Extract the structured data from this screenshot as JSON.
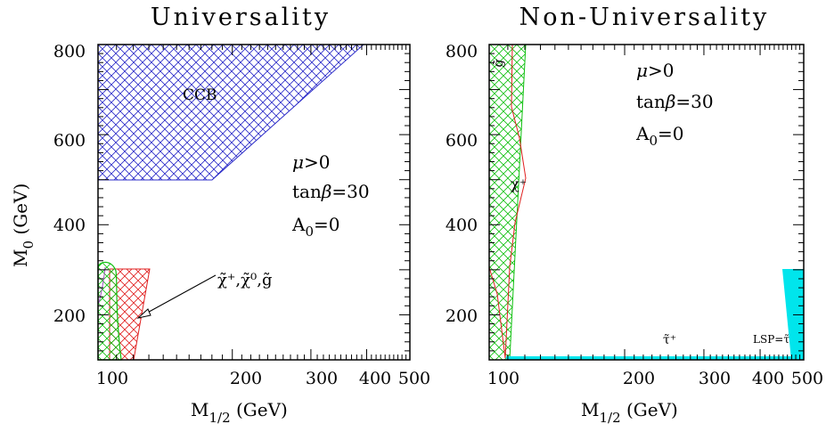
{
  "chart_data": [
    {
      "type": "area",
      "title": "Universality",
      "xlabel": "M_{1/2} (GeV)",
      "ylabel": "M_0 (GeV)",
      "x_scale": "log",
      "xlim": [
        100,
        500
      ],
      "ylim": [
        100,
        800
      ],
      "x_ticks": [
        "100",
        "200",
        "300",
        "400",
        "500"
      ],
      "y_ticks": [
        "200",
        "400",
        "600",
        "800"
      ],
      "params": [
        "μ>0",
        "tanβ=30",
        "A_0=0"
      ],
      "regions": [
        {
          "name": "CCB",
          "color": "#2a2ac8",
          "hatch": "crosshatch",
          "polygon": [
            [
              100,
              800
            ],
            [
              400,
              800
            ],
            [
              180,
              500
            ],
            [
              100,
              500
            ]
          ]
        },
        {
          "name": "χ⁺,χ⁰,g̃",
          "color": "#e02020",
          "hatch": "crosshatch",
          "polygon": [
            [
              104,
              300
            ],
            [
              128,
              300
            ],
            [
              118,
              100
            ],
            [
              104,
              100
            ]
          ]
        },
        {
          "name": "",
          "color": "#10c010",
          "hatch": "crosshatch",
          "polygon": [
            [
              100,
              300
            ],
            [
              104,
              312
            ],
            [
              108,
              300
            ],
            [
              111,
              100
            ],
            [
              100,
              100
            ]
          ]
        }
      ],
      "annotations": [
        {
          "text": "CCB",
          "x": 160,
          "y": 700
        },
        {
          "text": "χ̃⁺,χ̃⁰,g̃",
          "x": 222,
          "y": 283,
          "arrow_to": [
            118,
            180
          ]
        }
      ]
    },
    {
      "type": "area",
      "title": "Non-Universality",
      "xlabel": "M_{1/2} (GeV)",
      "ylabel": "",
      "x_scale": "log",
      "xlim": [
        100,
        500
      ],
      "ylim": [
        100,
        800
      ],
      "x_ticks": [
        "100",
        "200",
        "300",
        "400",
        "500"
      ],
      "y_ticks": [
        "200",
        "400",
        "600",
        "800"
      ],
      "params": [
        "μ>0",
        "tanβ=30",
        "A_0=0"
      ],
      "regions": [
        {
          "name": "g̃",
          "color": "#10c010",
          "hatch": "crosshatch",
          "polygon": [
            [
              100,
              800
            ],
            [
              115,
              800
            ],
            [
              110,
              100
            ],
            [
              100,
              100
            ]
          ]
        },
        {
          "name": "χ⁺",
          "color": "#e02020",
          "hatch": "none",
          "polygon": [
            [
              108,
              800
            ],
            [
              118,
              500
            ],
            [
              110,
              100
            ],
            [
              100,
              300
            ],
            [
              100,
              800
            ]
          ]
        },
        {
          "name": "LSP=τ̃",
          "color": "#00e0e8",
          "hatch": "solid",
          "polygon": [
            [
              460,
              300
            ],
            [
              500,
              300
            ],
            [
              500,
              100
            ],
            [
              470,
              100
            ]
          ]
        },
        {
          "name": "τ̃⁺",
          "color": "#00e0e8",
          "hatch": "solid",
          "polygon": [
            [
              110,
              108
            ],
            [
              500,
              108
            ],
            [
              500,
              100
            ],
            [
              110,
              100
            ]
          ]
        }
      ],
      "annotations": [
        {
          "text": "g̃",
          "x": 103,
          "y": 760
        },
        {
          "text": "χ⁺",
          "x": 113,
          "y": 515
        },
        {
          "text": "τ̃⁺",
          "x": 250,
          "y": 140
        },
        {
          "text": "LSP=τ̃",
          "x": 440,
          "y": 140
        }
      ]
    }
  ]
}
